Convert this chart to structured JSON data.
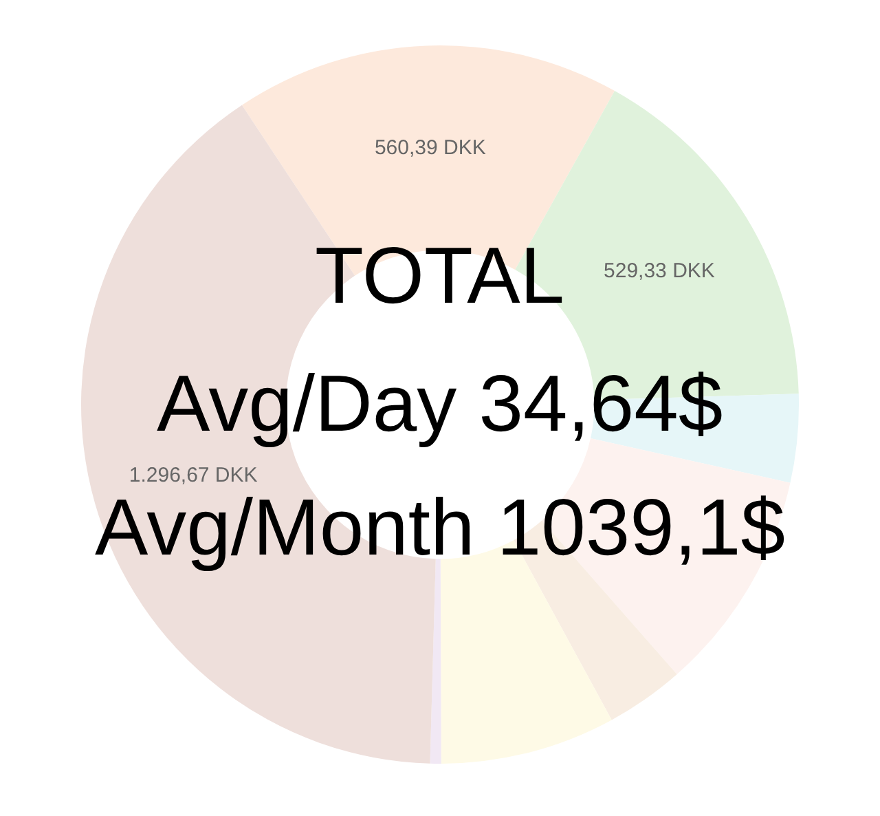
{
  "chart_data": {
    "type": "donut",
    "categories": [
      null,
      null,
      null,
      null,
      null,
      null,
      null,
      null
    ],
    "values": [
      560.39,
      529.33,
      128,
      323,
      114,
      254,
      16,
      1296.67
    ],
    "value_labels": [
      "560,39 DKK",
      "529,33 DKK",
      null,
      null,
      null,
      null,
      null,
      "1.296,67 DKK"
    ],
    "colors": [
      "#fde9dc",
      "#e0f2dc",
      "#e6f6f8",
      "#fdf2ef",
      "#f8ede2",
      "#fefae6",
      "#f1e8f4",
      "#eedfdb"
    ],
    "annotations": [
      "TOTAL",
      "Avg/Day 34,64$",
      "Avg/Month 1039,1$"
    ],
    "legend": false
  }
}
